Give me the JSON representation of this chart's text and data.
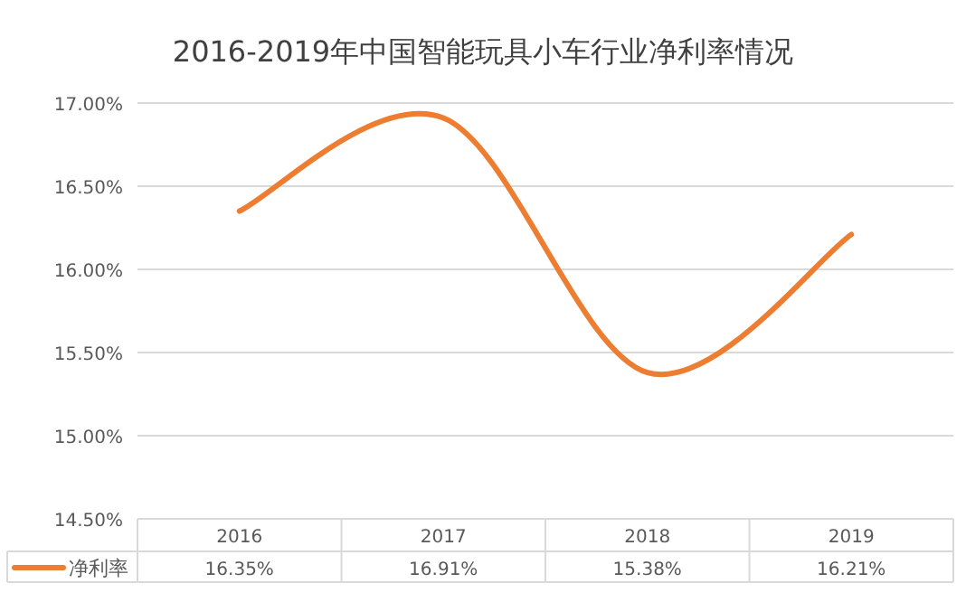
{
  "chart_data": {
    "type": "line",
    "title": "2016-2019年中国智能玩具小车行业净利率情况",
    "categories": [
      "2016",
      "2017",
      "2018",
      "2019"
    ],
    "series": [
      {
        "name": "净利率",
        "color": "#ed7d31",
        "values": [
          16.35,
          16.91,
          15.38,
          16.21
        ]
      }
    ],
    "value_labels": [
      "16.35%",
      "16.91%",
      "15.38%",
      "16.21%"
    ],
    "ylim": [
      14.5,
      17
    ],
    "yticks": [
      {
        "value": 14.5,
        "label": "14.50%"
      },
      {
        "value": 15,
        "label": "15.00%"
      },
      {
        "value": 15.5,
        "label": "15.50%"
      },
      {
        "value": 16,
        "label": "16.00%"
      },
      {
        "value": 16.5,
        "label": "16.50%"
      },
      {
        "value": 17,
        "label": "17.00%"
      }
    ],
    "grid": "y",
    "legend": "bottom",
    "line_style": "solid",
    "marker": "none"
  }
}
